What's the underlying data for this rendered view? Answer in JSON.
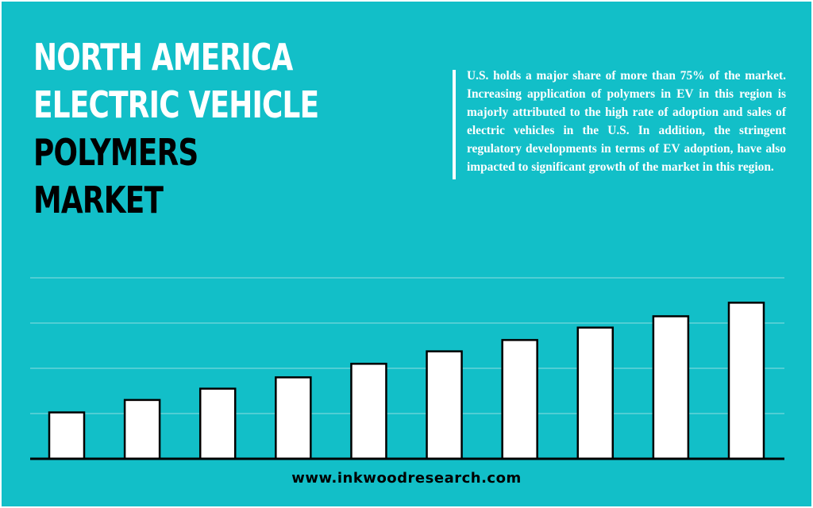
{
  "title": {
    "line1": "NORTH AMERICA",
    "line2": "ELECTRIC VEHICLE",
    "line3": "POLYMERS",
    "line4": "MARKET"
  },
  "description": "U.S. holds a major share of more than 75% of the market. Increasing application of polymers in EV in this region is majorly attributed to the high rate of adoption and sales of electric vehicles in the U.S. In addition, the stringent regulatory developments in terms of EV adoption, have also impacted to significant growth of the market in this region.",
  "footer": "www.inkwoodresearch.com",
  "colors": {
    "background": "#12bfc8",
    "bar_fill": "#ffffff",
    "bar_stroke": "#000000",
    "gridline": "#8fdde1",
    "title_accent": "#ffffff",
    "title_dark": "#000000"
  },
  "chart_data": {
    "type": "bar",
    "categories": [
      "",
      "",
      "",
      "",
      "",
      "",
      "",
      "",
      "",
      ""
    ],
    "values": [
      20.5,
      26,
      31,
      36,
      42,
      47.5,
      52.5,
      58,
      63,
      69
    ],
    "ylim": [
      0,
      80
    ],
    "gridlines": [
      20,
      40,
      60,
      80
    ],
    "grid": true,
    "legend": "none",
    "title": "",
    "xlabel": "",
    "ylabel": ""
  }
}
